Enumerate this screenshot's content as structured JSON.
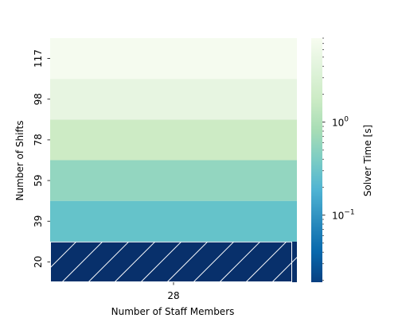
{
  "chart_data": {
    "type": "heatmap",
    "title": "",
    "xlabel": "Number of Staff Members",
    "ylabel": "Number of Shifts",
    "x_categories": [
      "28"
    ],
    "y_categories": [
      "20",
      "39",
      "59",
      "78",
      "98",
      "117"
    ],
    "cells": [
      {
        "x": "28",
        "y": "20",
        "value": null,
        "hatched": true,
        "color": "#08306b"
      },
      {
        "x": "28",
        "y": "39",
        "value": 0.15,
        "hatched": false,
        "color": "#65c3ca"
      },
      {
        "x": "28",
        "y": "59",
        "value": 0.5,
        "hatched": false,
        "color": "#93d6c0"
      },
      {
        "x": "28",
        "y": "78",
        "value": 1.3,
        "hatched": false,
        "color": "#cdebc5"
      },
      {
        "x": "28",
        "y": "98",
        "value": 3.2,
        "hatched": false,
        "color": "#e7f5e1"
      },
      {
        "x": "28",
        "y": "117",
        "value": 7.0,
        "hatched": false,
        "color": "#f5fbef"
      }
    ],
    "colorbar": {
      "label": "Solver Time [s]",
      "scale": "log",
      "range": [
        0.019,
        8.0
      ],
      "ticks": [
        {
          "value": 0.1,
          "base": "10",
          "exp": "−1"
        },
        {
          "value": 1,
          "base": "10",
          "exp": "0"
        }
      ],
      "colormap": "GnBu_r",
      "stops": [
        "#084081",
        "#0868ac",
        "#2b8cbe",
        "#4eb3d3",
        "#7bccc4",
        "#a8ddb5",
        "#ccebc5",
        "#e0f3db",
        "#f7fcf0"
      ]
    }
  }
}
